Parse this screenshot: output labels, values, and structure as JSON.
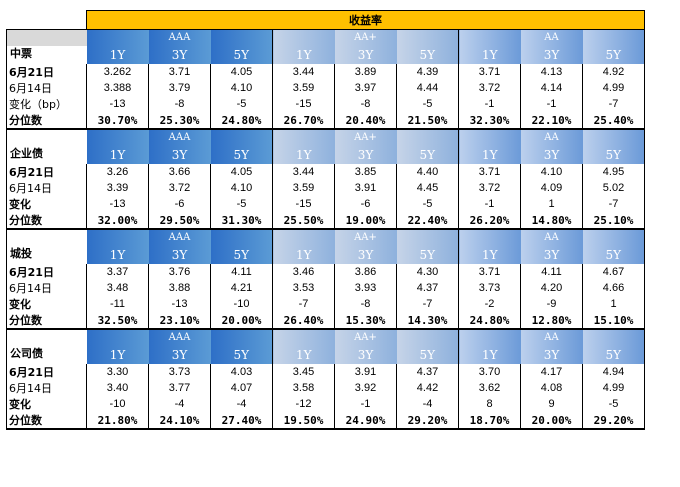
{
  "title": "收益率",
  "groups": [
    "AAA",
    "AA+",
    "AA"
  ],
  "tenors": [
    "1Y",
    "3Y",
    "5Y"
  ],
  "sections": [
    {
      "name": "中票",
      "rows": [
        {
          "label": "6月21日",
          "bold": true,
          "pct": false,
          "values": [
            "3.262",
            "3.71",
            "4.05",
            "3.44",
            "3.89",
            "4.39",
            "3.71",
            "4.13",
            "4.92"
          ]
        },
        {
          "label": "6月14日",
          "bold": false,
          "pct": false,
          "values": [
            "3.388",
            "3.79",
            "4.10",
            "3.59",
            "3.97",
            "4.44",
            "3.72",
            "4.14",
            "4.99"
          ]
        },
        {
          "label": "变化（bp）",
          "bold": false,
          "pct": false,
          "values": [
            "-13",
            "-8",
            "-5",
            "-15",
            "-8",
            "-5",
            "-1",
            "-1",
            "-7"
          ]
        },
        {
          "label": "分位数",
          "bold": true,
          "pct": true,
          "values": [
            "30.70%",
            "25.30%",
            "24.80%",
            "26.70%",
            "20.40%",
            "21.50%",
            "32.30%",
            "22.10%",
            "25.40%"
          ]
        }
      ]
    },
    {
      "name": "企业债",
      "rows": [
        {
          "label": "6月21日",
          "bold": true,
          "pct": false,
          "values": [
            "3.26",
            "3.66",
            "4.05",
            "3.44",
            "3.85",
            "4.40",
            "3.71",
            "4.10",
            "4.95"
          ]
        },
        {
          "label": "6月14日",
          "bold": false,
          "pct": false,
          "values": [
            "3.39",
            "3.72",
            "4.10",
            "3.59",
            "3.91",
            "4.45",
            "3.72",
            "4.09",
            "5.02"
          ]
        },
        {
          "label": "变化",
          "bold": true,
          "pct": false,
          "values": [
            "-13",
            "-6",
            "-5",
            "-15",
            "-6",
            "-5",
            "-1",
            "1",
            "-7"
          ]
        },
        {
          "label": "分位数",
          "bold": true,
          "pct": true,
          "values": [
            "32.00%",
            "29.50%",
            "31.30%",
            "25.50%",
            "19.00%",
            "22.40%",
            "26.20%",
            "14.80%",
            "25.10%"
          ]
        }
      ]
    },
    {
      "name": "城投",
      "rows": [
        {
          "label": "6月21日",
          "bold": true,
          "pct": false,
          "values": [
            "3.37",
            "3.76",
            "4.11",
            "3.46",
            "3.86",
            "4.30",
            "3.71",
            "4.11",
            "4.67"
          ]
        },
        {
          "label": "6月14日",
          "bold": false,
          "pct": false,
          "values": [
            "3.48",
            "3.88",
            "4.21",
            "3.53",
            "3.93",
            "4.37",
            "3.73",
            "4.20",
            "4.66"
          ]
        },
        {
          "label": "变化",
          "bold": true,
          "pct": false,
          "values": [
            "-11",
            "-13",
            "-10",
            "-7",
            "-8",
            "-7",
            "-2",
            "-9",
            "1"
          ]
        },
        {
          "label": "分位数",
          "bold": true,
          "pct": true,
          "values": [
            "32.50%",
            "23.10%",
            "20.00%",
            "26.40%",
            "15.30%",
            "14.30%",
            "24.80%",
            "12.80%",
            "15.10%"
          ]
        }
      ]
    },
    {
      "name": "公司债",
      "rows": [
        {
          "label": "6月21日",
          "bold": true,
          "pct": false,
          "values": [
            "3.30",
            "3.73",
            "4.03",
            "3.45",
            "3.91",
            "4.37",
            "3.70",
            "4.17",
            "4.94"
          ]
        },
        {
          "label": "6月14日",
          "bold": false,
          "pct": false,
          "values": [
            "3.40",
            "3.77",
            "4.07",
            "3.58",
            "3.92",
            "4.42",
            "3.62",
            "4.08",
            "4.99"
          ]
        },
        {
          "label": "变化",
          "bold": true,
          "pct": false,
          "values": [
            "-10",
            "-4",
            "-4",
            "-12",
            "-1",
            "-4",
            "8",
            "9",
            "-5"
          ]
        },
        {
          "label": "分位数",
          "bold": true,
          "pct": true,
          "values": [
            "21.80%",
            "24.10%",
            "27.40%",
            "19.50%",
            "24.90%",
            "29.20%",
            "18.70%",
            "20.00%",
            "29.20%"
          ]
        }
      ]
    }
  ]
}
